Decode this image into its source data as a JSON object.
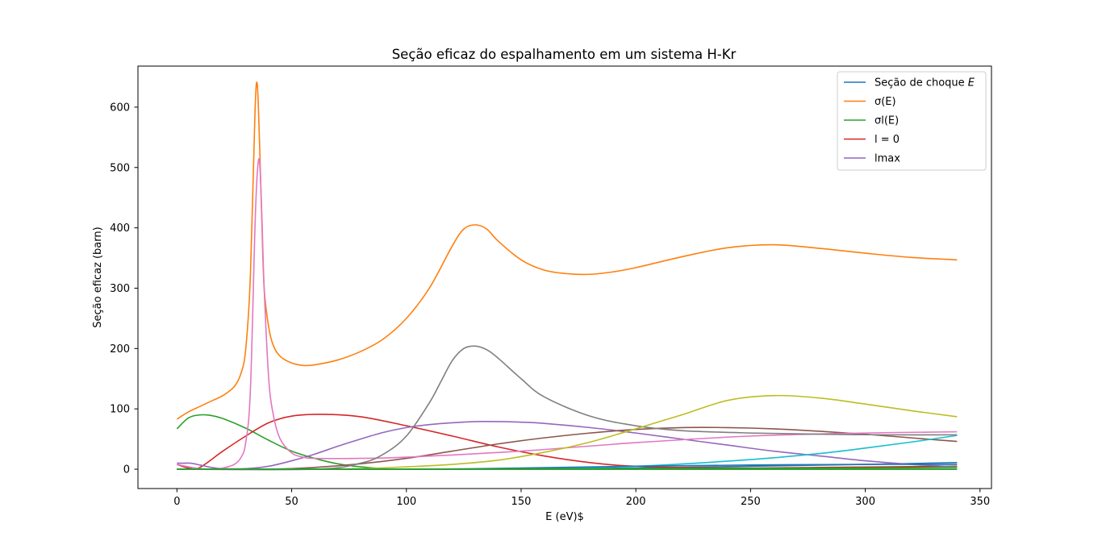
{
  "chart_data": {
    "type": "line",
    "title": "Seção eficaz do espalhamento em um sistema H-Kr",
    "xlabel": "E (eV)$",
    "ylabel": "Seção eficaz (barn)",
    "xlim": [
      -17,
      355
    ],
    "ylim": [
      -32,
      668
    ],
    "xticks": [
      0,
      50,
      100,
      150,
      200,
      250,
      300,
      350
    ],
    "yticks": [
      0,
      100,
      200,
      300,
      400,
      500,
      600
    ],
    "grid": false,
    "legend_position": "top-right",
    "series": [
      {
        "name": "Seção de choque E",
        "color": "#1f77b4",
        "x": [
          0,
          100,
          150,
          200,
          250,
          300,
          340
        ],
        "y": [
          0,
          0,
          0.5,
          2,
          5,
          8,
          11
        ]
      },
      {
        "name": "σ(E)",
        "color": "#ff7f0e",
        "x": [
          0,
          5,
          10,
          15,
          20,
          25,
          28,
          30,
          32,
          34,
          35,
          36,
          37,
          38,
          40,
          42,
          45,
          50,
          55,
          60,
          70,
          80,
          90,
          100,
          110,
          120,
          125,
          130,
          135,
          140,
          150,
          160,
          170,
          180,
          190,
          200,
          220,
          240,
          260,
          280,
          300,
          320,
          340
        ],
        "y": [
          83,
          95,
          104,
          113,
          122,
          137,
          160,
          200,
          320,
          590,
          638,
          540,
          410,
          300,
          235,
          205,
          187,
          176,
          172,
          173,
          181,
          195,
          216,
          250,
          300,
          370,
          398,
          405,
          398,
          378,
          347,
          330,
          324,
          323,
          327,
          334,
          352,
          367,
          372,
          366,
          358,
          351,
          347
        ]
      },
      {
        "name": "σ_l(E)",
        "color": "#2ca02c",
        "x": [
          0,
          5,
          10,
          15,
          20,
          30,
          40,
          50,
          60,
          70,
          80,
          90,
          100,
          340
        ],
        "y": [
          67,
          85,
          90,
          89,
          84,
          68,
          48,
          30,
          18,
          9,
          4,
          1,
          0,
          0
        ]
      },
      {
        "name": "l = 0",
        "color": "#d62728",
        "x": [
          0,
          5,
          10,
          20,
          30,
          40,
          50,
          63,
          80,
          100,
          120,
          140,
          160,
          180,
          200,
          240,
          280,
          340
        ],
        "y": [
          8,
          2,
          3,
          30,
          55,
          77,
          88,
          91,
          87,
          72,
          55,
          37,
          22,
          11,
          5,
          2,
          3,
          5
        ]
      },
      {
        "name": "l_max",
        "color": "#9467bd",
        "x": [
          0,
          3,
          6,
          10,
          15,
          20,
          30,
          40,
          50,
          60,
          70,
          80,
          90,
          100,
          110,
          120,
          130,
          140,
          150,
          160,
          180,
          200,
          220,
          240,
          260,
          280,
          300,
          320,
          340
        ],
        "y": [
          10,
          10,
          10,
          7,
          3,
          1,
          1,
          5,
          14,
          25,
          38,
          50,
          61,
          69,
          74,
          77,
          79,
          79,
          78,
          76,
          69,
          60,
          50,
          40,
          30,
          22,
          14,
          8,
          4
        ]
      },
      {
        "name": "",
        "color": "#8c564b",
        "x": [
          0,
          40,
          60,
          80,
          100,
          120,
          140,
          160,
          180,
          200,
          220,
          240,
          260,
          280,
          300,
          320,
          340
        ],
        "y": [
          0,
          0,
          3,
          9,
          18,
          30,
          42,
          52,
          60,
          66,
          69,
          69,
          67,
          63,
          58,
          52,
          46
        ]
      },
      {
        "name": "",
        "color": "#e377c2",
        "x": [
          0,
          5,
          10,
          15,
          20,
          25,
          28,
          30,
          32,
          34,
          35,
          36,
          37,
          38,
          40,
          42,
          45,
          50,
          55,
          60,
          80,
          100,
          150,
          200,
          250,
          300,
          340
        ],
        "y": [
          8,
          4,
          1,
          0,
          2,
          8,
          20,
          45,
          130,
          400,
          490,
          510,
          420,
          300,
          150,
          90,
          50,
          27,
          20,
          18,
          18,
          20,
          30,
          44,
          55,
          60,
          62
        ]
      },
      {
        "name": "",
        "color": "#7f7f7f",
        "x": [
          0,
          60,
          80,
          90,
          100,
          110,
          115,
          120,
          125,
          130,
          135,
          140,
          150,
          160,
          180,
          200,
          220,
          250,
          280,
          310,
          340
        ],
        "y": [
          0,
          0,
          10,
          25,
          55,
          110,
          145,
          180,
          200,
          204,
          198,
          184,
          150,
          120,
          88,
          72,
          64,
          60,
          58,
          57,
          57
        ]
      },
      {
        "name": "",
        "color": "#bcbd22",
        "x": [
          0,
          60,
          80,
          100,
          120,
          140,
          160,
          180,
          200,
          220,
          240,
          260,
          280,
          300,
          320,
          340
        ],
        "y": [
          0,
          0,
          1,
          4,
          8,
          15,
          28,
          45,
          67,
          90,
          114,
          122,
          118,
          108,
          97,
          87
        ]
      },
      {
        "name": "",
        "color": "#17becf",
        "x": [
          0,
          100,
          150,
          200,
          250,
          280,
          300,
          320,
          340
        ],
        "y": [
          0,
          0,
          1,
          5,
          16,
          26,
          35,
          45,
          56
        ]
      },
      {
        "name": "",
        "color": "#1f77b4",
        "x": [
          0,
          100,
          150,
          200,
          250,
          300,
          340
        ],
        "y": [
          0,
          0,
          2,
          5,
          7,
          8,
          8
        ]
      },
      {
        "name": "",
        "color": "#2ca02c",
        "x": [
          0,
          100,
          200,
          300,
          340
        ],
        "y": [
          0,
          0,
          1,
          2,
          3
        ]
      },
      {
        "name": "",
        "color": "#2ca02c",
        "x": [
          0,
          340
        ],
        "y": [
          0,
          0
        ]
      }
    ],
    "legend": [
      {
        "label": "Seção de choque ",
        "math": "E",
        "color": "#1f77b4"
      },
      {
        "label": "σ(E)",
        "math": "",
        "color": "#ff7f0e"
      },
      {
        "label": "σl(E)",
        "math": "",
        "color": "#2ca02c"
      },
      {
        "label": "l = 0",
        "math": "",
        "color": "#d62728"
      },
      {
        "label": "lmax",
        "math": "",
        "color": "#9467bd"
      }
    ]
  }
}
